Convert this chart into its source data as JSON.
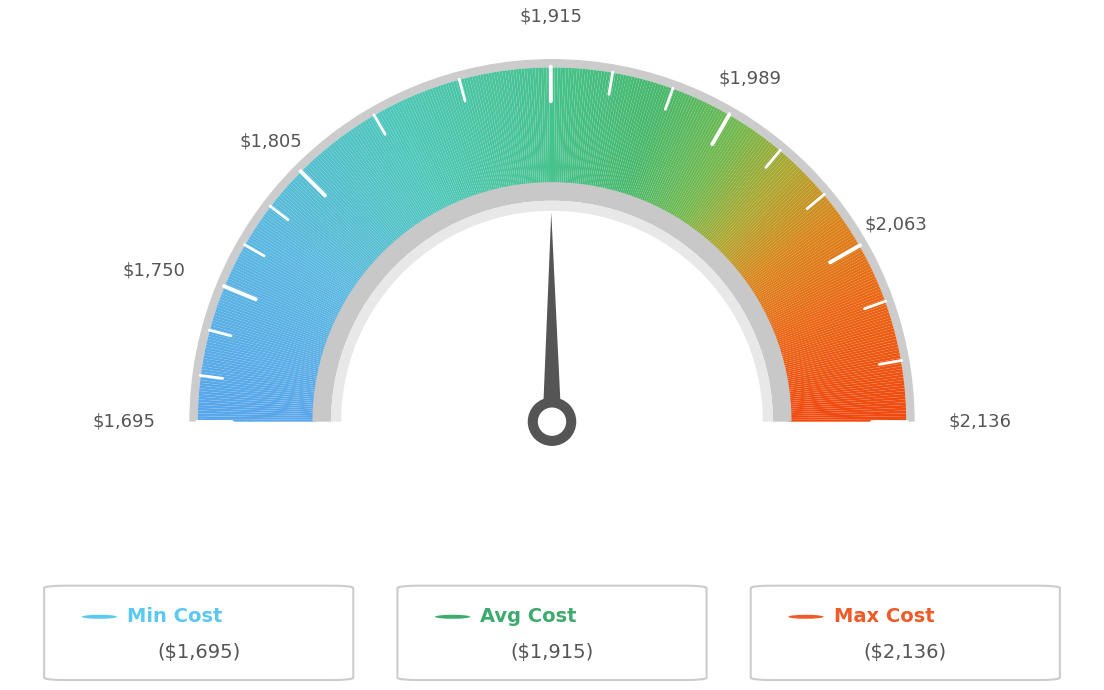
{
  "min_val": 1695,
  "max_val": 2136,
  "avg_val": 1915,
  "tick_labels": [
    "$1,695",
    "$1,750",
    "$1,805",
    "$1,915",
    "$1,989",
    "$2,063",
    "$2,136"
  ],
  "tick_values": [
    1695,
    1750,
    1805,
    1915,
    1989,
    2063,
    2136
  ],
  "legend_min_label": "Min Cost",
  "legend_avg_label": "Avg Cost",
  "legend_max_label": "Max Cost",
  "legend_min_value": "($1,695)",
  "legend_avg_value": "($1,915)",
  "legend_max_value": "($2,136)",
  "legend_min_color": "#5bc8f0",
  "legend_avg_color": "#3daa6e",
  "legend_max_color": "#f05a28",
  "background_color": "#ffffff",
  "colors": [
    [
      0.0,
      [
        0.35,
        0.65,
        0.92
      ]
    ],
    [
      0.18,
      [
        0.35,
        0.72,
        0.88
      ]
    ],
    [
      0.35,
      [
        0.3,
        0.78,
        0.72
      ]
    ],
    [
      0.5,
      [
        0.28,
        0.76,
        0.55
      ]
    ],
    [
      0.6,
      [
        0.28,
        0.72,
        0.42
      ]
    ],
    [
      0.68,
      [
        0.45,
        0.72,
        0.3
      ]
    ],
    [
      0.74,
      [
        0.68,
        0.65,
        0.18
      ]
    ],
    [
      0.8,
      [
        0.85,
        0.52,
        0.1
      ]
    ],
    [
      0.88,
      [
        0.92,
        0.4,
        0.08
      ]
    ],
    [
      1.0,
      [
        0.94,
        0.28,
        0.06
      ]
    ]
  ]
}
